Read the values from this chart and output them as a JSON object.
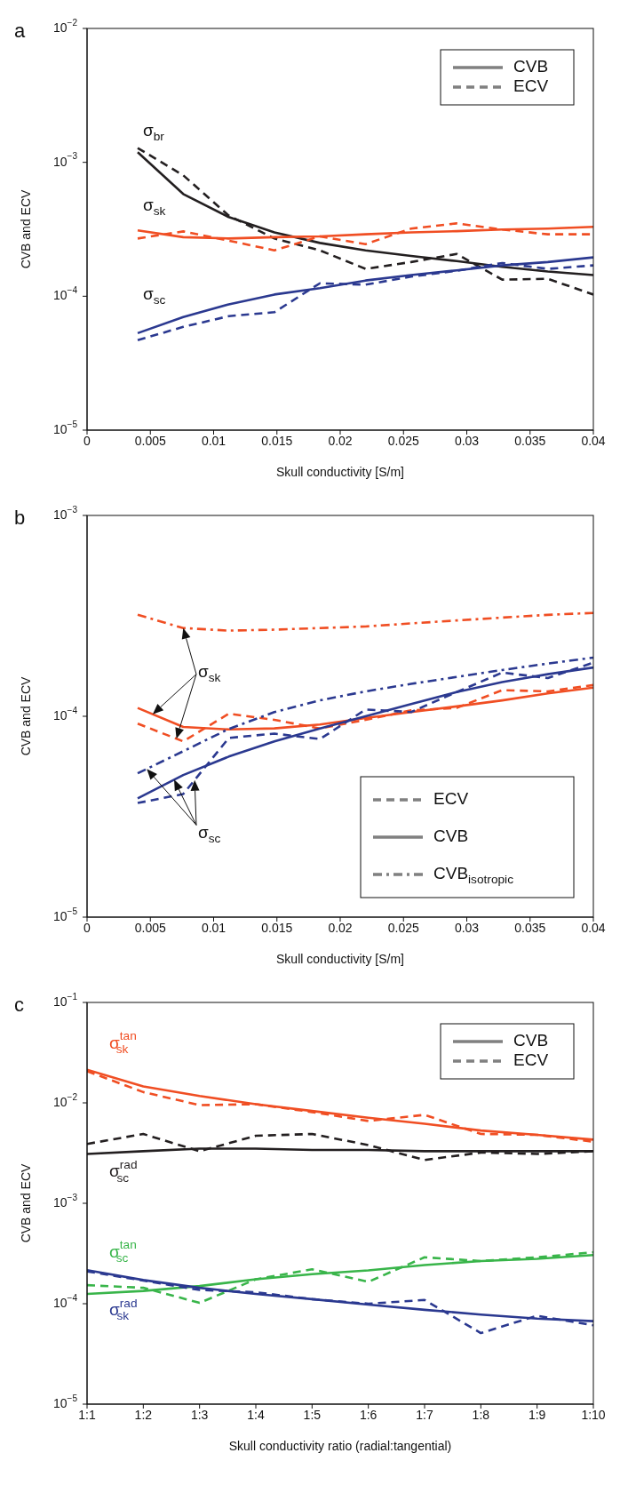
{
  "chart_data": [
    {
      "type": "line",
      "title": "a",
      "xlabel": "Skull conductivity [S/m]",
      "ylabel": "CVB and ECV",
      "log": true,
      "x": [
        0.004,
        0.0076,
        0.0112,
        0.0148,
        0.0184,
        0.022,
        0.0256,
        0.0292,
        0.0328,
        0.0364,
        0.04
      ],
      "xlim": [
        0,
        0.04
      ],
      "xticks": [
        0,
        0.005,
        0.01,
        0.015,
        0.02,
        0.025,
        0.03,
        0.035,
        0.04
      ],
      "ylim": [
        1e-05,
        0.01
      ],
      "yticks": [
        {
          "value": 1e-05,
          "label": "10$^{−5}$"
        },
        {
          "value": 0.0001,
          "label": "10$^{−4}$"
        },
        {
          "value": 0.001,
          "label": "10$^{−3}$"
        },
        {
          "value": 0.01,
          "label": "10$^{−2}$"
        }
      ],
      "series": [
        {
          "name": "σ$_{br}$",
          "color": "#231f20",
          "line_style": "solid",
          "values": [
            0.00119,
            0.00058,
            0.00039,
            0.0003,
            0.00025,
            0.00022,
            0.0002,
            0.000183,
            0.000166,
            0.000153,
            0.000144
          ]
        },
        {
          "color": "#231f20",
          "line_style": "dashed",
          "values": [
            0.00128,
            0.0008,
            0.0004,
            0.00027,
            0.00022,
            0.00016,
            0.00018,
            0.000207,
            0.000133,
            0.000135,
            0.000103
          ]
        },
        {
          "name": "σ$_{sk}$",
          "color": "#f04e23",
          "line_style": "solid",
          "values": [
            0.00031,
            0.000276,
            0.00027,
            0.000276,
            0.00028,
            0.00029,
            0.0003,
            0.000306,
            0.000315,
            0.00032,
            0.00033
          ]
        },
        {
          "color": "#f04e23",
          "line_style": "dashed",
          "values": [
            0.00027,
            0.000305,
            0.00026,
            0.00022,
            0.00028,
            0.000245,
            0.00032,
            0.00035,
            0.000315,
            0.00029,
            0.00029
          ]
        },
        {
          "name": "σ$_{sc}$",
          "color": "#2b3990",
          "line_style": "solid",
          "values": [
            5.3e-05,
            7e-05,
            8.7e-05,
            0.000103,
            0.000115,
            0.000131,
            0.000144,
            0.000156,
            0.00017,
            0.00018,
            0.000195
          ]
        },
        {
          "color": "#2b3990",
          "line_style": "dashed",
          "values": [
            4.7e-05,
            5.9e-05,
            7.1e-05,
            7.6e-05,
            0.000125,
            0.000122,
            0.00014,
            0.000155,
            0.000177,
            0.00016,
            0.00017
          ]
        }
      ],
      "annotations": [
        "CVB",
        "ECV"
      ]
    },
    {
      "type": "line",
      "title": "b",
      "xlabel": "Skull conductivity [S/m]",
      "ylabel": "CVB and ECV",
      "log": true,
      "x": [
        0.004,
        0.0076,
        0.0112,
        0.0148,
        0.0184,
        0.022,
        0.0256,
        0.0292,
        0.0328,
        0.0364,
        0.04
      ],
      "xlim": [
        0,
        0.04
      ],
      "xticks": [
        0,
        0.005,
        0.01,
        0.015,
        0.02,
        0.025,
        0.03,
        0.035,
        0.04
      ],
      "ylim": [
        1e-05,
        0.001
      ],
      "yticks": [
        {
          "value": 1e-05,
          "label": "10$^{−5}$"
        },
        {
          "value": 0.0001,
          "label": "10$^{−4}$"
        },
        {
          "value": 0.001,
          "label": "10$^{−3}$"
        }
      ],
      "series": [
        {
          "color": "#f04e23",
          "line_style": "dashed",
          "values": [
            9.2e-05,
            7.5e-05,
            0.000103,
            9.6e-05,
            8.7e-05,
            9.6e-05,
            0.000107,
            0.00011,
            0.000135,
            0.000133,
            0.000143
          ]
        },
        {
          "name": "σ$_{sk}$",
          "color": "#f04e23",
          "line_style": "solid",
          "values": [
            0.00011,
            8.85e-05,
            8.6e-05,
            8.7e-05,
            9.1e-05,
            9.8e-05,
            0.000105,
            0.000112,
            0.00012,
            0.00013,
            0.000139
          ]
        },
        {
          "color": "#f04e23",
          "line_style": "dashdot",
          "values": [
            0.00032,
            0.000275,
            0.000267,
            0.00027,
            0.000275,
            0.00028,
            0.00029,
            0.0003,
            0.00031,
            0.00032,
            0.000327
          ]
        },
        {
          "color": "#2b3990",
          "line_style": "dashed",
          "values": [
            3.7e-05,
            4.1e-05,
            7.8e-05,
            8.2e-05,
            7.7e-05,
            0.000108,
            0.000105,
            0.000132,
            0.000165,
            0.000155,
            0.000185
          ]
        },
        {
          "name": "σ$_{sc}$",
          "color": "#2b3990",
          "line_style": "solid",
          "values": [
            3.9e-05,
            5.1e-05,
            6.3e-05,
            7.5e-05,
            8.7e-05,
            0.0001,
            0.000115,
            0.000132,
            0.000148,
            0.000162,
            0.000175
          ]
        },
        {
          "color": "#2b3990",
          "line_style": "dashdot",
          "values": [
            5.2e-05,
            6.7e-05,
            8.65e-05,
            0.000105,
            0.00012,
            0.000133,
            0.000145,
            0.000157,
            0.00017,
            0.000183,
            0.000196
          ]
        }
      ],
      "annotations": [
        "ECV",
        "CVB",
        "CVB$_{isotropic}$"
      ]
    },
    {
      "type": "line",
      "title": "c",
      "xlabel": "Skull conductivity ratio (radial:tangential)",
      "ylabel": "CVB and ECV",
      "log": true,
      "categories": [
        "1:1",
        "1:2",
        "1:3",
        "1:4",
        "1:5",
        "1:6",
        "1:7",
        "1:8",
        "1:9",
        "1:10"
      ],
      "ylim": [
        1e-05,
        0.1
      ],
      "yticks": [
        {
          "value": 1e-05,
          "label": "10$^{−5}$"
        },
        {
          "value": 0.0001,
          "label": "10$^{−4}$"
        },
        {
          "value": 0.001,
          "label": "10$^{−3}$"
        },
        {
          "value": 0.01,
          "label": "10$^{−2}$"
        },
        {
          "value": 0.1,
          "label": "10$^{−1}$"
        }
      ],
      "series": [
        {
          "name": "σ$^{tan}$$_{sk}$",
          "color": "#f04e23",
          "line_style": "solid",
          "values": [
            0.0214,
            0.0146,
            0.0117,
            0.0097,
            0.0083,
            0.0071,
            0.0062,
            0.0053,
            0.0048,
            0.0043
          ]
        },
        {
          "color": "#f04e23",
          "line_style": "dashed",
          "values": [
            0.0207,
            0.0128,
            0.0095,
            0.0097,
            0.0081,
            0.0066,
            0.0076,
            0.0049,
            0.0048,
            0.0041
          ]
        },
        {
          "name": "σ$^{rad}$$_{sc}$",
          "color": "#231f20",
          "line_style": "solid",
          "values": [
            0.0031,
            0.0033,
            0.0035,
            0.0035,
            0.0034,
            0.0034,
            0.0033,
            0.0033,
            0.0033,
            0.0033
          ]
        },
        {
          "color": "#231f20",
          "line_style": "dashed",
          "values": [
            0.0039,
            0.0049,
            0.0033,
            0.0047,
            0.0049,
            0.0038,
            0.0027,
            0.0032,
            0.0031,
            0.0033
          ]
        },
        {
          "name": "σ$^{tan}$$_{sc}$",
          "color": "#39b54a",
          "line_style": "solid",
          "values": [
            0.000125,
            0.000134,
            0.00015,
            0.000175,
            0.000197,
            0.000215,
            0.000243,
            0.000266,
            0.00028,
            0.000305
          ]
        },
        {
          "color": "#39b54a",
          "line_style": "dashed",
          "values": [
            0.000153,
            0.000144,
            0.000102,
            0.000175,
            0.00022,
            0.000165,
            0.00029,
            0.000266,
            0.00029,
            0.000325
          ]
        },
        {
          "name": "σ$^{rad}$$_{sk}$",
          "color": "#2b3990",
          "line_style": "solid",
          "values": [
            0.000216,
            0.000172,
            0.000144,
            0.000125,
            0.000111,
            9.8e-05,
            8.7e-05,
            7.8e-05,
            7.1e-05,
            6.7e-05
          ]
        },
        {
          "color": "#2b3990",
          "line_style": "dashed",
          "values": [
            0.00021,
            0.00017,
            0.000137,
            0.00013,
            0.000111,
            0.0001,
            0.000109,
            5.1e-05,
            7.6e-05,
            6.1e-05
          ]
        }
      ],
      "annotations": [
        "CVB",
        "ECV"
      ]
    }
  ]
}
